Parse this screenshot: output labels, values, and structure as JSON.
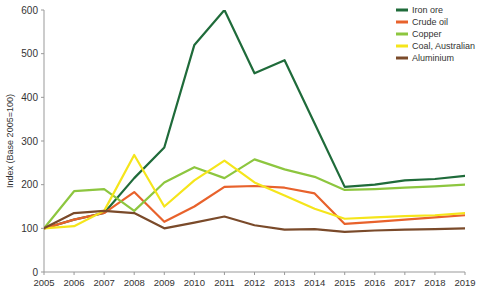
{
  "chart_data": {
    "type": "line",
    "y_label": "Index (Base 2005=100)",
    "categories": [
      "2005",
      "2006",
      "2007",
      "2008",
      "2009",
      "2010",
      "2011",
      "2012",
      "2013",
      "2014",
      "2015",
      "2016",
      "2017",
      "2018",
      "2019"
    ],
    "series": [
      {
        "name": "Iron ore",
        "color": "#1f6b3a",
        "values": [
          100,
          120,
          135,
          215,
          285,
          520,
          600,
          455,
          485,
          340,
          195,
          200,
          210,
          213,
          220
        ]
      },
      {
        "name": "Crude oil",
        "color": "#e8622c",
        "values": [
          100,
          120,
          135,
          183,
          115,
          150,
          195,
          197,
          193,
          180,
          110,
          115,
          120,
          125,
          130
        ]
      },
      {
        "name": "Copper",
        "color": "#8dc63f",
        "values": [
          100,
          185,
          190,
          140,
          205,
          240,
          215,
          258,
          235,
          218,
          188,
          190,
          193,
          196,
          200
        ]
      },
      {
        "name": "Coal, Australian",
        "color": "#f5e51b",
        "values": [
          100,
          105,
          140,
          268,
          150,
          210,
          255,
          205,
          175,
          145,
          122,
          125,
          128,
          130,
          135
        ]
      },
      {
        "name": "Aluminium",
        "color": "#7a4a2a",
        "values": [
          100,
          135,
          140,
          135,
          100,
          113,
          127,
          107,
          97,
          98,
          92,
          95,
          97,
          98,
          100
        ]
      }
    ],
    "ylim": [
      0,
      600
    ],
    "yticks": [
      0,
      100,
      200,
      300,
      400,
      500,
      600
    ],
    "grid": false,
    "legend": "top-right"
  }
}
